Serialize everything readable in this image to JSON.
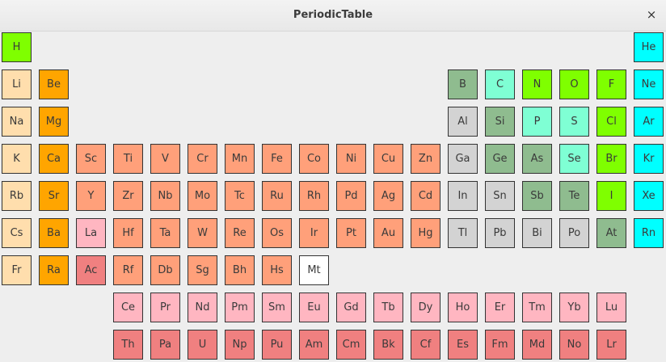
{
  "window": {
    "title": "PeriodicTable",
    "close_label": "×"
  },
  "colors": {
    "nonmetal": "#7fff00",
    "noble": "#00ffff",
    "alkali": "#ffdead",
    "alkaline": "#ffa500",
    "transition": "#ffa07a",
    "metalloid": "#8fbc8f",
    "other": "#d3d3d3",
    "semi": "#7fffd4",
    "lanthanide": "#ffb6c1",
    "actinide": "#f08080",
    "unknown": "#ffffff"
  },
  "elements": [
    {
      "s": "H",
      "row": 0,
      "col": 0,
      "c": "nonmetal"
    },
    {
      "s": "He",
      "row": 0,
      "col": 17,
      "c": "noble"
    },
    {
      "s": "Li",
      "row": 1,
      "col": 0,
      "c": "alkali"
    },
    {
      "s": "Be",
      "row": 1,
      "col": 1,
      "c": "alkaline"
    },
    {
      "s": "B",
      "row": 1,
      "col": 12,
      "c": "metalloid"
    },
    {
      "s": "C",
      "row": 1,
      "col": 13,
      "c": "semi"
    },
    {
      "s": "N",
      "row": 1,
      "col": 14,
      "c": "nonmetal"
    },
    {
      "s": "O",
      "row": 1,
      "col": 15,
      "c": "nonmetal"
    },
    {
      "s": "F",
      "row": 1,
      "col": 16,
      "c": "nonmetal"
    },
    {
      "s": "Ne",
      "row": 1,
      "col": 17,
      "c": "noble"
    },
    {
      "s": "Na",
      "row": 2,
      "col": 0,
      "c": "alkali"
    },
    {
      "s": "Mg",
      "row": 2,
      "col": 1,
      "c": "alkaline"
    },
    {
      "s": "Al",
      "row": 2,
      "col": 12,
      "c": "other"
    },
    {
      "s": "Si",
      "row": 2,
      "col": 13,
      "c": "metalloid"
    },
    {
      "s": "P",
      "row": 2,
      "col": 14,
      "c": "semi"
    },
    {
      "s": "S",
      "row": 2,
      "col": 15,
      "c": "semi"
    },
    {
      "s": "Cl",
      "row": 2,
      "col": 16,
      "c": "nonmetal"
    },
    {
      "s": "Ar",
      "row": 2,
      "col": 17,
      "c": "noble"
    },
    {
      "s": "K",
      "row": 3,
      "col": 0,
      "c": "alkali"
    },
    {
      "s": "Ca",
      "row": 3,
      "col": 1,
      "c": "alkaline"
    },
    {
      "s": "Sc",
      "row": 3,
      "col": 2,
      "c": "transition"
    },
    {
      "s": "Ti",
      "row": 3,
      "col": 3,
      "c": "transition"
    },
    {
      "s": "V",
      "row": 3,
      "col": 4,
      "c": "transition"
    },
    {
      "s": "Cr",
      "row": 3,
      "col": 5,
      "c": "transition"
    },
    {
      "s": "Mn",
      "row": 3,
      "col": 6,
      "c": "transition"
    },
    {
      "s": "Fe",
      "row": 3,
      "col": 7,
      "c": "transition"
    },
    {
      "s": "Co",
      "row": 3,
      "col": 8,
      "c": "transition"
    },
    {
      "s": "Ni",
      "row": 3,
      "col": 9,
      "c": "transition"
    },
    {
      "s": "Cu",
      "row": 3,
      "col": 10,
      "c": "transition"
    },
    {
      "s": "Zn",
      "row": 3,
      "col": 11,
      "c": "transition"
    },
    {
      "s": "Ga",
      "row": 3,
      "col": 12,
      "c": "other"
    },
    {
      "s": "Ge",
      "row": 3,
      "col": 13,
      "c": "metalloid"
    },
    {
      "s": "As",
      "row": 3,
      "col": 14,
      "c": "metalloid"
    },
    {
      "s": "Se",
      "row": 3,
      "col": 15,
      "c": "semi"
    },
    {
      "s": "Br",
      "row": 3,
      "col": 16,
      "c": "nonmetal"
    },
    {
      "s": "Kr",
      "row": 3,
      "col": 17,
      "c": "noble"
    },
    {
      "s": "Rb",
      "row": 4,
      "col": 0,
      "c": "alkali"
    },
    {
      "s": "Sr",
      "row": 4,
      "col": 1,
      "c": "alkaline"
    },
    {
      "s": "Y",
      "row": 4,
      "col": 2,
      "c": "transition"
    },
    {
      "s": "Zr",
      "row": 4,
      "col": 3,
      "c": "transition"
    },
    {
      "s": "Nb",
      "row": 4,
      "col": 4,
      "c": "transition"
    },
    {
      "s": "Mo",
      "row": 4,
      "col": 5,
      "c": "transition"
    },
    {
      "s": "Tc",
      "row": 4,
      "col": 6,
      "c": "transition"
    },
    {
      "s": "Ru",
      "row": 4,
      "col": 7,
      "c": "transition"
    },
    {
      "s": "Rh",
      "row": 4,
      "col": 8,
      "c": "transition"
    },
    {
      "s": "Pd",
      "row": 4,
      "col": 9,
      "c": "transition"
    },
    {
      "s": "Ag",
      "row": 4,
      "col": 10,
      "c": "transition"
    },
    {
      "s": "Cd",
      "row": 4,
      "col": 11,
      "c": "transition"
    },
    {
      "s": "In",
      "row": 4,
      "col": 12,
      "c": "other"
    },
    {
      "s": "Sn",
      "row": 4,
      "col": 13,
      "c": "other"
    },
    {
      "s": "Sb",
      "row": 4,
      "col": 14,
      "c": "metalloid"
    },
    {
      "s": "Te",
      "row": 4,
      "col": 15,
      "c": "metalloid"
    },
    {
      "s": "I",
      "row": 4,
      "col": 16,
      "c": "nonmetal"
    },
    {
      "s": "Xe",
      "row": 4,
      "col": 17,
      "c": "noble"
    },
    {
      "s": "Cs",
      "row": 5,
      "col": 0,
      "c": "alkali"
    },
    {
      "s": "Ba",
      "row": 5,
      "col": 1,
      "c": "alkaline"
    },
    {
      "s": "La",
      "row": 5,
      "col": 2,
      "c": "lanthanide"
    },
    {
      "s": "Hf",
      "row": 5,
      "col": 3,
      "c": "transition"
    },
    {
      "s": "Ta",
      "row": 5,
      "col": 4,
      "c": "transition"
    },
    {
      "s": "W",
      "row": 5,
      "col": 5,
      "c": "transition"
    },
    {
      "s": "Re",
      "row": 5,
      "col": 6,
      "c": "transition"
    },
    {
      "s": "Os",
      "row": 5,
      "col": 7,
      "c": "transition"
    },
    {
      "s": "Ir",
      "row": 5,
      "col": 8,
      "c": "transition"
    },
    {
      "s": "Pt",
      "row": 5,
      "col": 9,
      "c": "transition"
    },
    {
      "s": "Au",
      "row": 5,
      "col": 10,
      "c": "transition"
    },
    {
      "s": "Hg",
      "row": 5,
      "col": 11,
      "c": "transition"
    },
    {
      "s": "Tl",
      "row": 5,
      "col": 12,
      "c": "other"
    },
    {
      "s": "Pb",
      "row": 5,
      "col": 13,
      "c": "other"
    },
    {
      "s": "Bi",
      "row": 5,
      "col": 14,
      "c": "other"
    },
    {
      "s": "Po",
      "row": 5,
      "col": 15,
      "c": "other"
    },
    {
      "s": "At",
      "row": 5,
      "col": 16,
      "c": "metalloid"
    },
    {
      "s": "Rn",
      "row": 5,
      "col": 17,
      "c": "noble"
    },
    {
      "s": "Fr",
      "row": 6,
      "col": 0,
      "c": "alkali"
    },
    {
      "s": "Ra",
      "row": 6,
      "col": 1,
      "c": "alkaline"
    },
    {
      "s": "Ac",
      "row": 6,
      "col": 2,
      "c": "actinide"
    },
    {
      "s": "Rf",
      "row": 6,
      "col": 3,
      "c": "transition"
    },
    {
      "s": "Db",
      "row": 6,
      "col": 4,
      "c": "transition"
    },
    {
      "s": "Sg",
      "row": 6,
      "col": 5,
      "c": "transition"
    },
    {
      "s": "Bh",
      "row": 6,
      "col": 6,
      "c": "transition"
    },
    {
      "s": "Hs",
      "row": 6,
      "col": 7,
      "c": "transition"
    },
    {
      "s": "Mt",
      "row": 6,
      "col": 8,
      "c": "unknown"
    },
    {
      "s": "Ce",
      "row": 7,
      "col": 3,
      "c": "lanthanide"
    },
    {
      "s": "Pr",
      "row": 7,
      "col": 4,
      "c": "lanthanide"
    },
    {
      "s": "Nd",
      "row": 7,
      "col": 5,
      "c": "lanthanide"
    },
    {
      "s": "Pm",
      "row": 7,
      "col": 6,
      "c": "lanthanide"
    },
    {
      "s": "Sm",
      "row": 7,
      "col": 7,
      "c": "lanthanide"
    },
    {
      "s": "Eu",
      "row": 7,
      "col": 8,
      "c": "lanthanide"
    },
    {
      "s": "Gd",
      "row": 7,
      "col": 9,
      "c": "lanthanide"
    },
    {
      "s": "Tb",
      "row": 7,
      "col": 10,
      "c": "lanthanide"
    },
    {
      "s": "Dy",
      "row": 7,
      "col": 11,
      "c": "lanthanide"
    },
    {
      "s": "Ho",
      "row": 7,
      "col": 12,
      "c": "lanthanide"
    },
    {
      "s": "Er",
      "row": 7,
      "col": 13,
      "c": "lanthanide"
    },
    {
      "s": "Tm",
      "row": 7,
      "col": 14,
      "c": "lanthanide"
    },
    {
      "s": "Yb",
      "row": 7,
      "col": 15,
      "c": "lanthanide"
    },
    {
      "s": "Lu",
      "row": 7,
      "col": 16,
      "c": "lanthanide"
    },
    {
      "s": "Th",
      "row": 8,
      "col": 3,
      "c": "actinide"
    },
    {
      "s": "Pa",
      "row": 8,
      "col": 4,
      "c": "actinide"
    },
    {
      "s": "U",
      "row": 8,
      "col": 5,
      "c": "actinide"
    },
    {
      "s": "Np",
      "row": 8,
      "col": 6,
      "c": "actinide"
    },
    {
      "s": "Pu",
      "row": 8,
      "col": 7,
      "c": "actinide"
    },
    {
      "s": "Am",
      "row": 8,
      "col": 8,
      "c": "actinide"
    },
    {
      "s": "Cm",
      "row": 8,
      "col": 9,
      "c": "actinide"
    },
    {
      "s": "Bk",
      "row": 8,
      "col": 10,
      "c": "actinide"
    },
    {
      "s": "Cf",
      "row": 8,
      "col": 11,
      "c": "actinide"
    },
    {
      "s": "Es",
      "row": 8,
      "col": 12,
      "c": "actinide"
    },
    {
      "s": "Fm",
      "row": 8,
      "col": 13,
      "c": "actinide"
    },
    {
      "s": "Md",
      "row": 8,
      "col": 14,
      "c": "actinide"
    },
    {
      "s": "No",
      "row": 8,
      "col": 15,
      "c": "actinide"
    },
    {
      "s": "Lr",
      "row": 8,
      "col": 16,
      "c": "actinide"
    }
  ]
}
